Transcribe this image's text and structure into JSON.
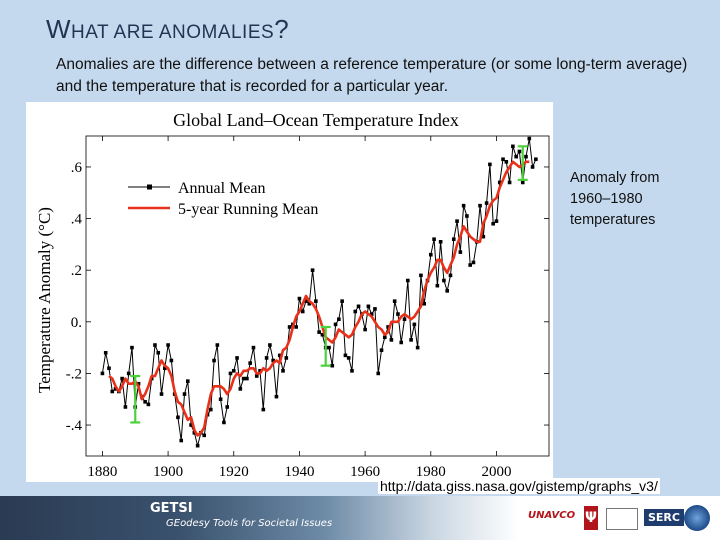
{
  "slide": {
    "title_first": "W",
    "title_rest": "HAT ARE ANOMALIES",
    "title_end": "?",
    "description": "Anomalies are the difference between a reference temperature (or some long-term average) and the temperature that is recorded for a particular year.",
    "side_note": "Anomaly from 1960–1980 temperatures",
    "source_url": "http://data.giss.nasa.gov/gistemp/graphs_v3/"
  },
  "footer": {
    "brand": "GETSI",
    "subtitle": "GEodesy Tools for Societal Issues",
    "logos": [
      "UNAVCO",
      "IU",
      "SERC",
      "NSF"
    ]
  },
  "colors": {
    "background": "#c5d9ee",
    "annual": "#000000",
    "running": "#e8311a",
    "error_bar": "#4cd13b"
  },
  "chart_data": {
    "type": "line",
    "title": "Global Land–Ocean Temperature Index",
    "ylabel": "Temperature Anomaly (°C)",
    "xlabel": "",
    "xlim": [
      1875,
      2016
    ],
    "ylim": [
      -0.52,
      0.72
    ],
    "x_ticks": [
      1880,
      1900,
      1920,
      1940,
      1960,
      1980,
      2000
    ],
    "y_ticks": [
      {
        "value": -0.4,
        "label": "-.4"
      },
      {
        "value": -0.2,
        "label": "-.2"
      },
      {
        "value": 0.0,
        "label": "0."
      },
      {
        "value": 0.2,
        "label": ".2"
      },
      {
        "value": 0.4,
        "label": ".4"
      },
      {
        "value": 0.6,
        "label": ".6"
      }
    ],
    "legend": {
      "position": "top-left"
    },
    "series": [
      {
        "name": "Annual Mean",
        "marker": "square",
        "x": [
          1880,
          1881,
          1882,
          1883,
          1884,
          1885,
          1886,
          1887,
          1888,
          1889,
          1890,
          1891,
          1892,
          1893,
          1894,
          1895,
          1896,
          1897,
          1898,
          1899,
          1900,
          1901,
          1902,
          1903,
          1904,
          1905,
          1906,
          1907,
          1908,
          1909,
          1910,
          1911,
          1912,
          1913,
          1914,
          1915,
          1916,
          1917,
          1918,
          1919,
          1920,
          1921,
          1922,
          1923,
          1924,
          1925,
          1926,
          1927,
          1928,
          1929,
          1930,
          1931,
          1932,
          1933,
          1934,
          1935,
          1936,
          1937,
          1938,
          1939,
          1940,
          1941,
          1942,
          1943,
          1944,
          1945,
          1946,
          1947,
          1948,
          1949,
          1950,
          1951,
          1952,
          1953,
          1954,
          1955,
          1956,
          1957,
          1958,
          1959,
          1960,
          1961,
          1962,
          1963,
          1964,
          1965,
          1966,
          1967,
          1968,
          1969,
          1970,
          1971,
          1972,
          1973,
          1974,
          1975,
          1976,
          1977,
          1978,
          1979,
          1980,
          1981,
          1982,
          1983,
          1984,
          1985,
          1986,
          1987,
          1988,
          1989,
          1990,
          1991,
          1992,
          1993,
          1994,
          1995,
          1996,
          1997,
          1998,
          1999,
          2000,
          2001,
          2002,
          2003,
          2004,
          2005,
          2006,
          2007,
          2008,
          2009,
          2010,
          2011,
          2012
        ],
        "values": [
          -0.2,
          -0.12,
          -0.18,
          -0.27,
          -0.26,
          -0.27,
          -0.22,
          -0.33,
          -0.2,
          -0.1,
          -0.33,
          -0.24,
          -0.29,
          -0.31,
          -0.32,
          -0.22,
          -0.09,
          -0.12,
          -0.28,
          -0.18,
          -0.09,
          -0.15,
          -0.28,
          -0.37,
          -0.46,
          -0.28,
          -0.23,
          -0.4,
          -0.43,
          -0.48,
          -0.43,
          -0.44,
          -0.36,
          -0.34,
          -0.15,
          -0.09,
          -0.3,
          -0.39,
          -0.33,
          -0.2,
          -0.19,
          -0.14,
          -0.26,
          -0.22,
          -0.22,
          -0.16,
          -0.1,
          -0.21,
          -0.19,
          -0.34,
          -0.14,
          -0.09,
          -0.15,
          -0.29,
          -0.13,
          -0.19,
          -0.14,
          -0.02,
          -0.01,
          -0.02,
          0.09,
          0.04,
          0.08,
          0.07,
          0.2,
          0.08,
          -0.04,
          -0.05,
          -0.1,
          -0.1,
          -0.17,
          -0.01,
          0.01,
          0.08,
          -0.13,
          -0.14,
          -0.19,
          0.04,
          0.06,
          0.03,
          -0.03,
          0.06,
          0.03,
          0.05,
          -0.2,
          -0.11,
          -0.06,
          -0.02,
          -0.07,
          0.08,
          0.03,
          -0.08,
          0.01,
          0.16,
          -0.07,
          -0.01,
          -0.1,
          0.18,
          0.07,
          0.16,
          0.26,
          0.32,
          0.14,
          0.31,
          0.16,
          0.12,
          0.18,
          0.32,
          0.39,
          0.27,
          0.45,
          0.41,
          0.22,
          0.23,
          0.31,
          0.45,
          0.33,
          0.46,
          0.61,
          0.38,
          0.39,
          0.54,
          0.63,
          0.62,
          0.54,
          0.68,
          0.64,
          0.66,
          0.54,
          0.64,
          0.71,
          0.6,
          0.63
        ]
      },
      {
        "name": "5-year Running Mean",
        "x": [
          1882,
          1883,
          1884,
          1885,
          1886,
          1887,
          1888,
          1889,
          1890,
          1891,
          1892,
          1893,
          1894,
          1895,
          1896,
          1897,
          1898,
          1899,
          1900,
          1901,
          1902,
          1903,
          1904,
          1905,
          1906,
          1907,
          1908,
          1909,
          1910,
          1911,
          1912,
          1913,
          1914,
          1915,
          1916,
          1917,
          1918,
          1919,
          1920,
          1921,
          1922,
          1923,
          1924,
          1925,
          1926,
          1927,
          1928,
          1929,
          1930,
          1931,
          1932,
          1933,
          1934,
          1935,
          1936,
          1937,
          1938,
          1939,
          1940,
          1941,
          1942,
          1943,
          1944,
          1945,
          1946,
          1947,
          1948,
          1949,
          1950,
          1951,
          1952,
          1953,
          1954,
          1955,
          1956,
          1957,
          1958,
          1959,
          1960,
          1961,
          1962,
          1963,
          1964,
          1965,
          1966,
          1967,
          1968,
          1969,
          1970,
          1971,
          1972,
          1973,
          1974,
          1975,
          1976,
          1977,
          1978,
          1979,
          1980,
          1981,
          1982,
          1983,
          1984,
          1985,
          1986,
          1987,
          1988,
          1989,
          1990,
          1991,
          1992,
          1993,
          1994,
          1995,
          1996,
          1997,
          1998,
          1999,
          2000,
          2001,
          2002,
          2003,
          2004,
          2005,
          2006,
          2007,
          2008,
          2009,
          2010
        ],
        "values": [
          -0.21,
          -0.22,
          -0.25,
          -0.27,
          -0.25,
          -0.22,
          -0.24,
          -0.24,
          -0.23,
          -0.25,
          -0.3,
          -0.28,
          -0.25,
          -0.21,
          -0.21,
          -0.18,
          -0.15,
          -0.17,
          -0.18,
          -0.21,
          -0.27,
          -0.31,
          -0.32,
          -0.35,
          -0.38,
          -0.37,
          -0.42,
          -0.44,
          -0.43,
          -0.41,
          -0.34,
          -0.28,
          -0.25,
          -0.25,
          -0.25,
          -0.26,
          -0.28,
          -0.26,
          -0.22,
          -0.2,
          -0.21,
          -0.19,
          -0.19,
          -0.18,
          -0.18,
          -0.2,
          -0.2,
          -0.18,
          -0.19,
          -0.18,
          -0.16,
          -0.15,
          -0.16,
          -0.11,
          -0.1,
          -0.07,
          -0.02,
          0.02,
          0.04,
          0.07,
          0.1,
          0.08,
          0.07,
          0.05,
          0.02,
          -0.02,
          -0.06,
          -0.07,
          -0.08,
          -0.06,
          -0.03,
          -0.04,
          -0.05,
          -0.06,
          -0.05,
          -0.02,
          0.0,
          0.03,
          0.04,
          0.03,
          0.02,
          0.0,
          -0.02,
          -0.03,
          -0.05,
          -0.04,
          0.0,
          0.0,
          0.0,
          0.02,
          0.03,
          0.02,
          0.01,
          0.02,
          0.04,
          0.06,
          0.12,
          0.16,
          0.19,
          0.21,
          0.24,
          0.24,
          0.21,
          0.19,
          0.22,
          0.25,
          0.3,
          0.33,
          0.37,
          0.35,
          0.33,
          0.32,
          0.31,
          0.31,
          0.38,
          0.41,
          0.45,
          0.47,
          0.48,
          0.52,
          0.55,
          0.58,
          0.6,
          0.62,
          0.61,
          0.6,
          0.61,
          0.62,
          0.62
        ]
      }
    ],
    "uncertainty_bars": [
      {
        "x": 1890,
        "low": -0.39,
        "high": -0.21
      },
      {
        "x": 1948,
        "low": -0.17,
        "high": -0.02
      },
      {
        "x": 2008,
        "low": 0.55,
        "high": 0.68
      }
    ]
  }
}
